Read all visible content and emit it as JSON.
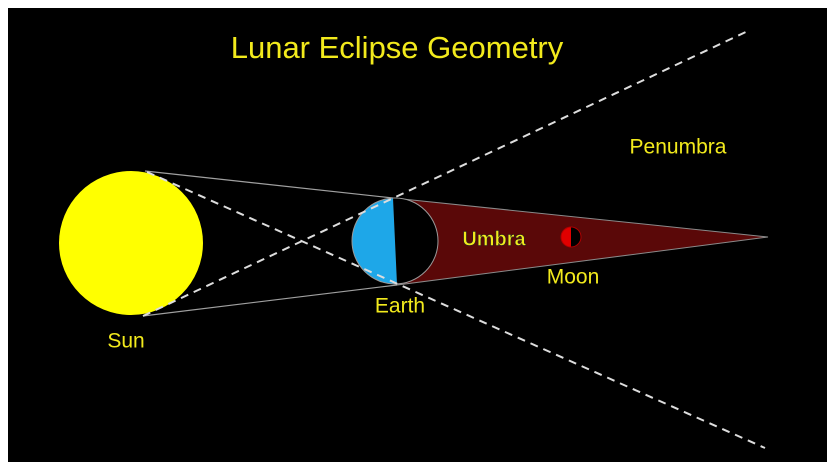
{
  "title": "Lunar Eclipse Geometry",
  "labels": {
    "sun": "Sun",
    "earth": "Earth",
    "moon": "Moon",
    "umbra": "Umbra",
    "penumbra": "Penumbra"
  }
}
